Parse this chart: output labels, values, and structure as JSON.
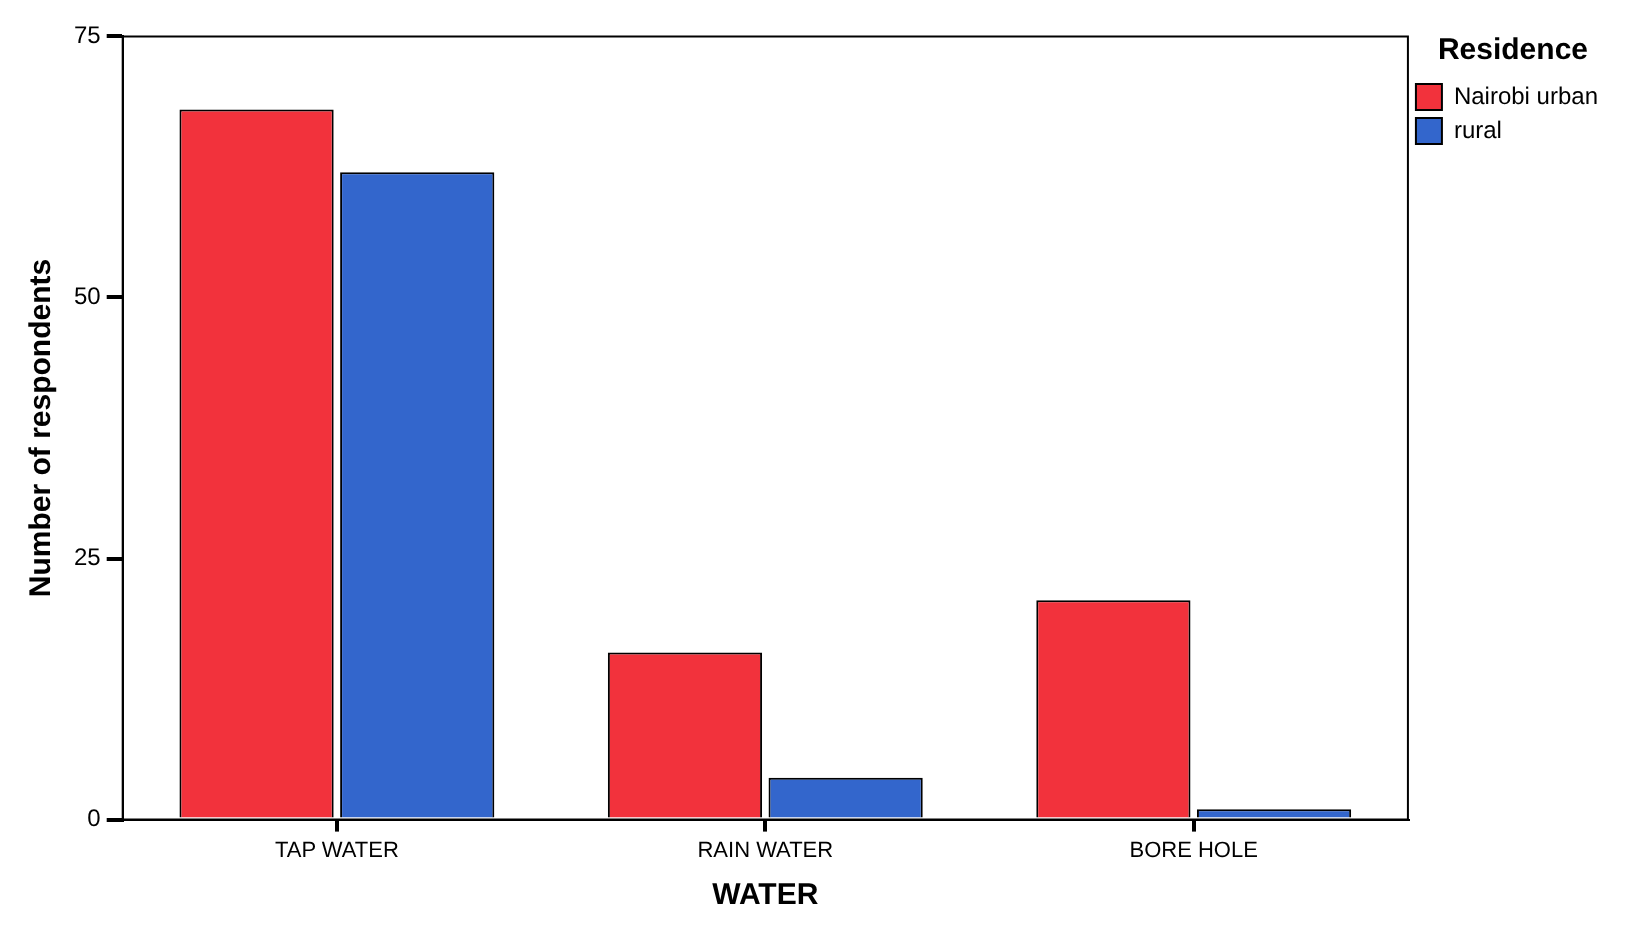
{
  "chart_data": {
    "type": "bar",
    "xlabel": "WATER",
    "ylabel": "Number of respondents",
    "legend_title": "Residence",
    "categories": [
      "TAP WATER",
      "RAIN WATER",
      "BORE HOLE"
    ],
    "series": [
      {
        "name": "Nairobi urban",
        "color": "#f2323c",
        "values": [
          68,
          16,
          21
        ]
      },
      {
        "name": "rural",
        "color": "#3366cc",
        "values": [
          62,
          4,
          1
        ]
      }
    ],
    "ylim": [
      0,
      75
    ],
    "yticks": [
      0,
      25,
      50,
      75
    ],
    "grid": false,
    "legend": "top right"
  }
}
